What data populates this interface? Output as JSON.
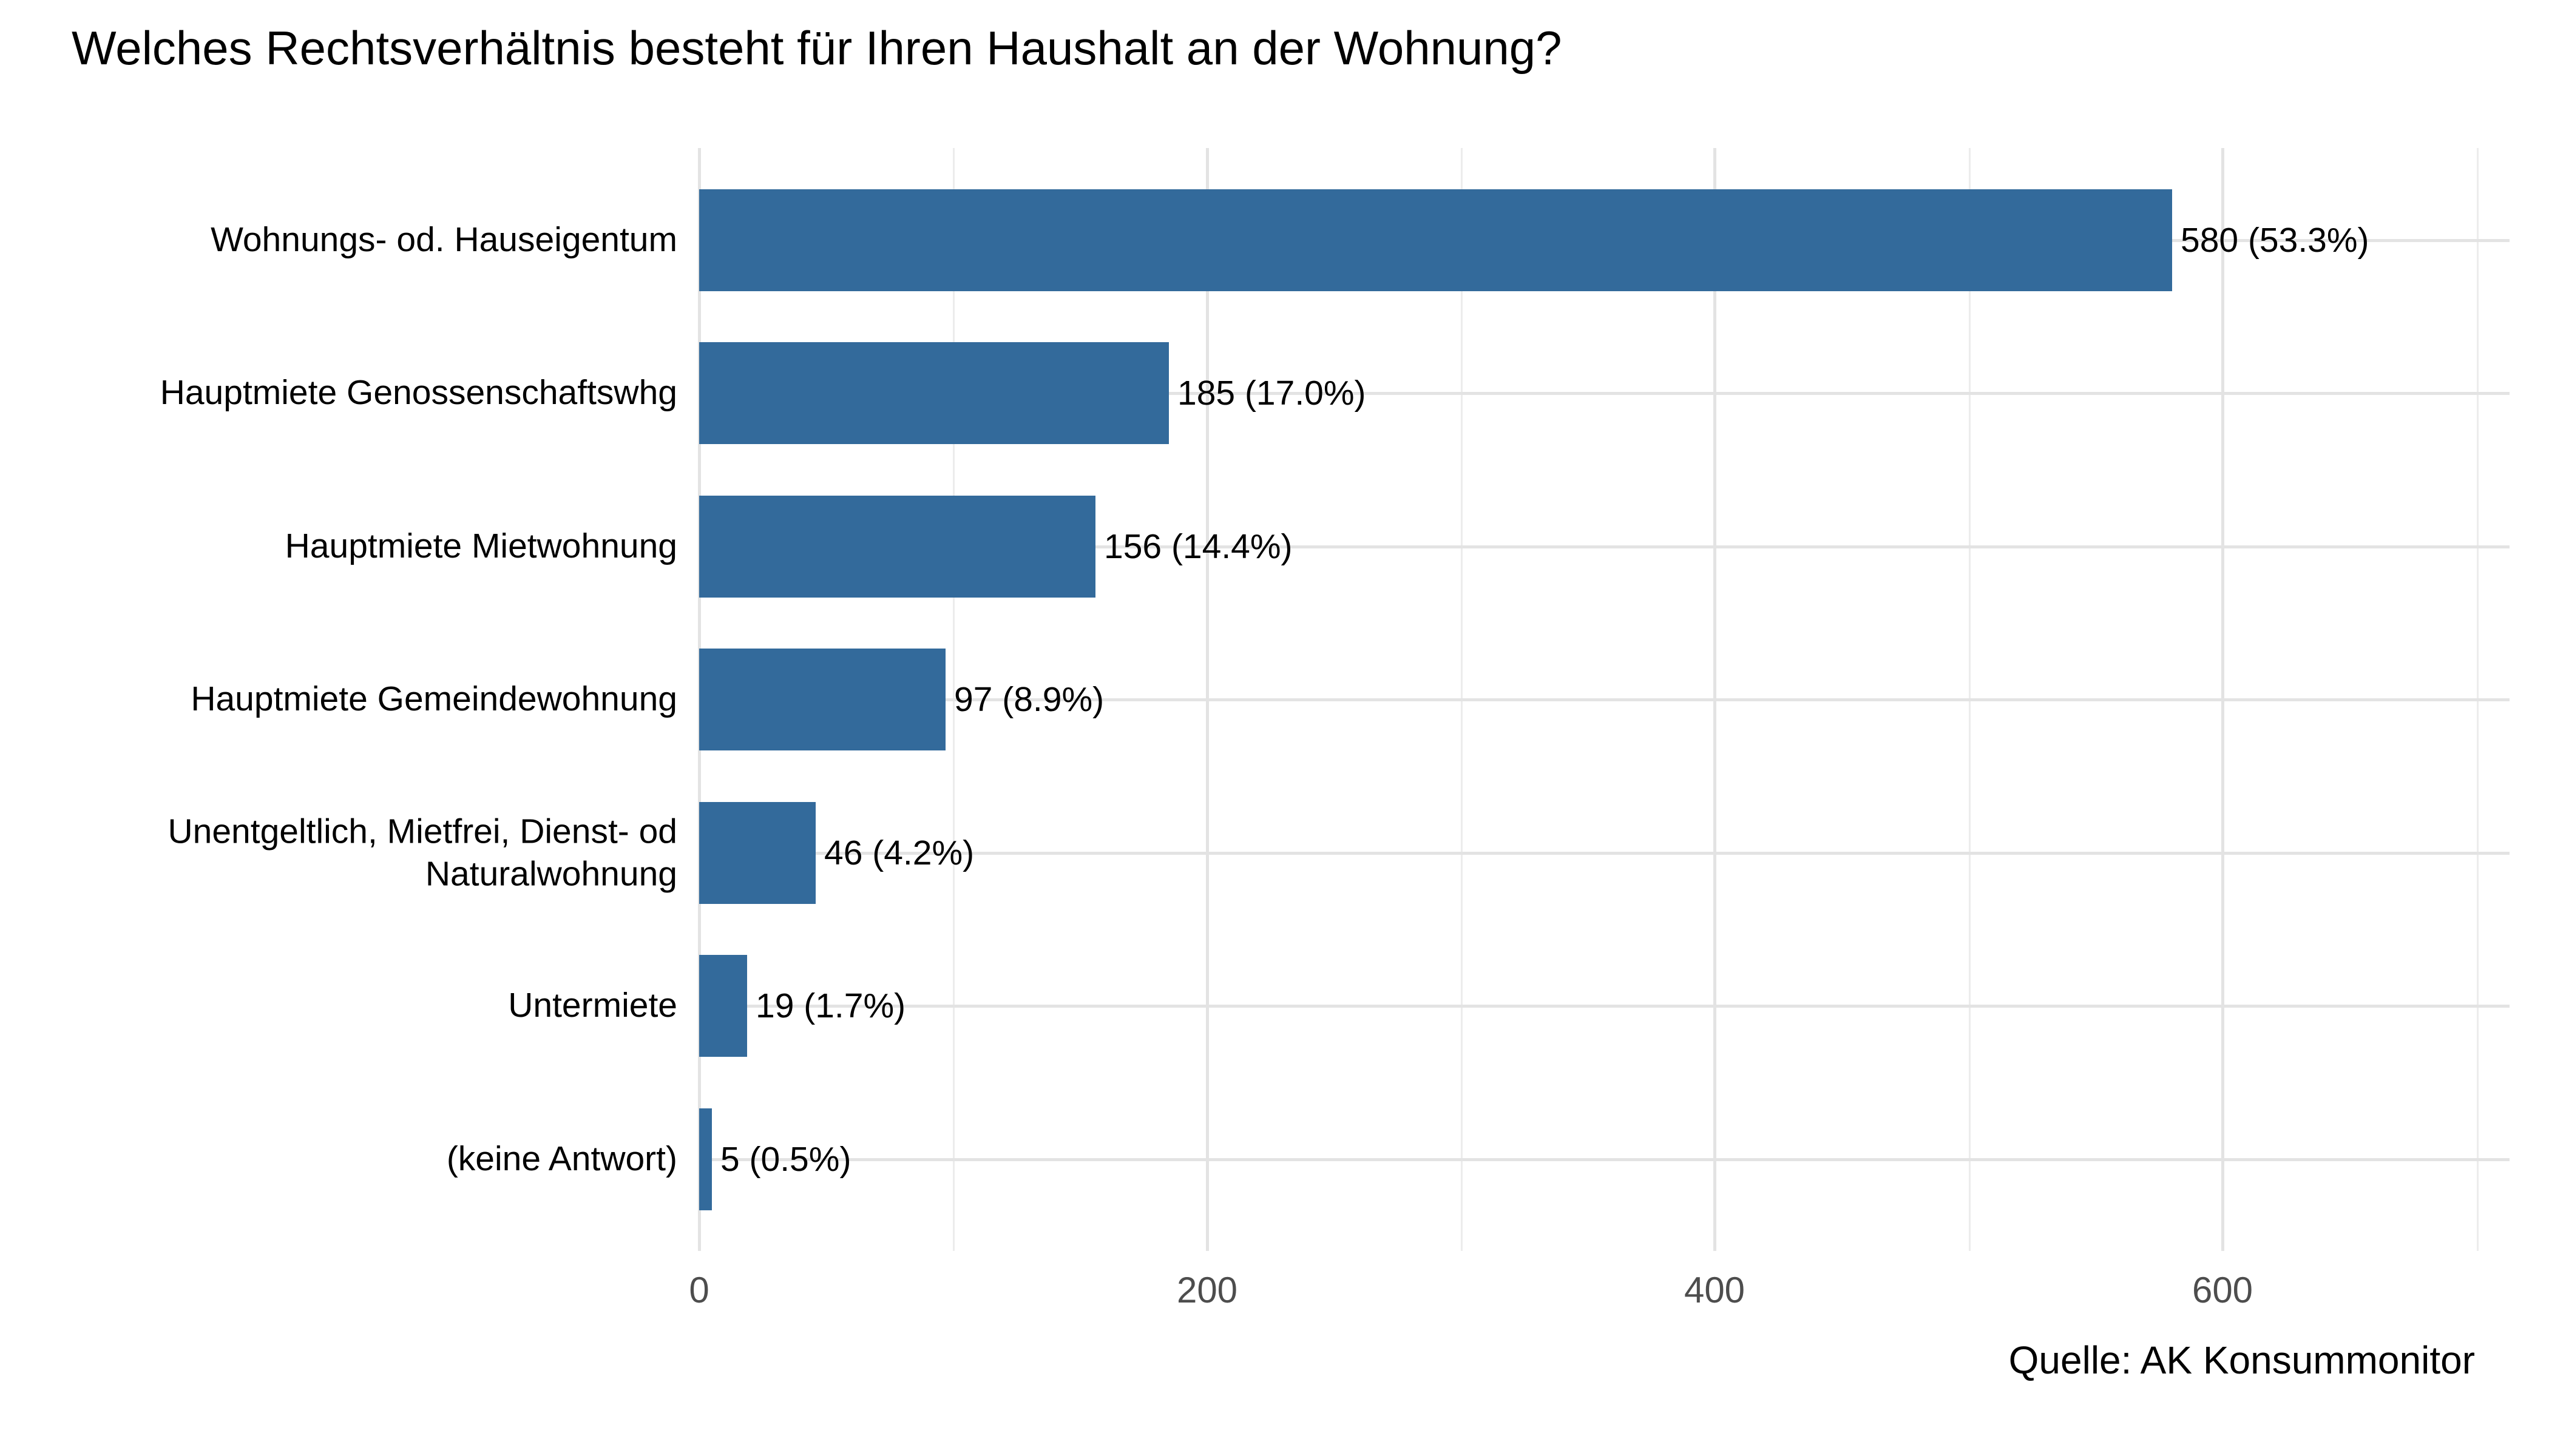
{
  "title": "Welches Rechtsverhältnis besteht für Ihren Haushalt an der Wohnung?",
  "source_caption": "Quelle: AK Konsummonitor",
  "colors": {
    "bar": "#336A9B",
    "grid_major": "#E3E3E3",
    "grid_minor": "#ECECEC",
    "axis_tick_label": "#4D4D4D",
    "text": "#000000",
    "background": "#FFFFFF"
  },
  "chart_data": {
    "type": "bar",
    "orientation": "horizontal",
    "title": "Welches Rechtsverhältnis besteht für Ihren Haushalt an der Wohnung?",
    "categories": [
      "Wohnungs- od. Hauseigentum",
      "Hauptmiete Genossenschaftswhg",
      "Hauptmiete Mietwohnung",
      "Hauptmiete Gemeindewohnung",
      "Unentgeltlich, Mietfrei, Dienst- od\nNaturalwohnung",
      "Untermiete",
      "(keine Antwort)"
    ],
    "values": [
      580,
      185,
      156,
      97,
      46,
      19,
      5
    ],
    "percents": [
      53.3,
      17.0,
      14.4,
      8.9,
      4.2,
      1.7,
      0.5
    ],
    "bar_labels": [
      "580 (53.3%)",
      "185 (17.0%)",
      "156 (14.4%)",
      "97 (8.9%)",
      "46 (4.2%)",
      "19 (1.7%)",
      "5 (0.5%)"
    ],
    "xlabel": "",
    "ylabel": "",
    "xlim": [
      0,
      713
    ],
    "x_major_ticks": [
      0,
      200,
      400,
      600
    ],
    "x_minor_ticks": [
      100,
      300,
      500,
      700
    ],
    "grid": "major+minor vertical, major horizontal",
    "legend": "none",
    "source": "Quelle: AK Konsummonitor"
  }
}
